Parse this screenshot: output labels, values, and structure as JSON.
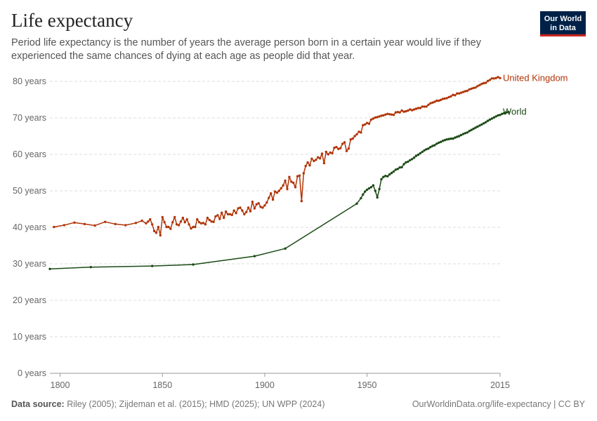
{
  "header": {
    "title": "Life expectancy",
    "subtitle": "Period life expectancy is the number of years the average person born in a certain year would live if they experienced the same chances of dying at each age as people did that year.",
    "logo_line1": "Our World",
    "logo_line2": "in Data"
  },
  "footer": {
    "source_label": "Data source:",
    "source_text": "Riley (2005); Zijdeman et al. (2015); HMD (2025); UN WPP (2024)",
    "url_text": "OurWorldinData.org/life-expectancy | CC BY"
  },
  "colors": {
    "uk": "#b13507",
    "world": "#1a4a14",
    "grid": "#dddddd"
  },
  "chart_data": {
    "type": "line",
    "title": "Life expectancy",
    "xlim": [
      1795,
      2015
    ],
    "ylim": [
      0,
      80
    ],
    "y_ticks": [
      0,
      10,
      20,
      30,
      40,
      50,
      60,
      70,
      80
    ],
    "y_tick_labels": [
      "0 years",
      "10 years",
      "20 years",
      "30 years",
      "40 years",
      "50 years",
      "60 years",
      "70 years",
      "80 years"
    ],
    "x_ticks": [
      1800,
      1850,
      1900,
      1950,
      2015
    ],
    "x_tick_labels": [
      "1800",
      "1850",
      "1900",
      "1950",
      "2015"
    ],
    "grid": "horizontal dashed",
    "series": [
      {
        "name": "United Kingdom",
        "color": "#b13507",
        "points": [
          [
            1797,
            40.1
          ],
          [
            1802,
            40.6
          ],
          [
            1807,
            41.3
          ],
          [
            1812,
            40.9
          ],
          [
            1817,
            40.5
          ],
          [
            1822,
            41.5
          ],
          [
            1827,
            40.9
          ],
          [
            1832,
            40.6
          ],
          [
            1837,
            41.2
          ],
          [
            1840,
            41.8
          ],
          [
            1842,
            41.1
          ],
          [
            1843,
            41.6
          ],
          [
            1844,
            42.2
          ],
          [
            1845,
            40.8
          ],
          [
            1846,
            39.0
          ],
          [
            1847,
            38.5
          ],
          [
            1848,
            40.1
          ],
          [
            1849,
            37.8
          ],
          [
            1850,
            42.8
          ],
          [
            1851,
            41.4
          ],
          [
            1852,
            40.1
          ],
          [
            1853,
            40.1
          ],
          [
            1854,
            39.6
          ],
          [
            1855,
            41.4
          ],
          [
            1856,
            42.8
          ],
          [
            1857,
            40.8
          ],
          [
            1858,
            40.6
          ],
          [
            1859,
            41.6
          ],
          [
            1860,
            42.6
          ],
          [
            1861,
            41.4
          ],
          [
            1862,
            42.2
          ],
          [
            1863,
            40.8
          ],
          [
            1864,
            39.7
          ],
          [
            1865,
            40.1
          ],
          [
            1866,
            40.1
          ],
          [
            1867,
            42.2
          ],
          [
            1868,
            41.4
          ],
          [
            1869,
            41.1
          ],
          [
            1870,
            41.2
          ],
          [
            1871,
            40.8
          ],
          [
            1872,
            42.6
          ],
          [
            1873,
            42.0
          ],
          [
            1874,
            41.6
          ],
          [
            1875,
            41.5
          ],
          [
            1876,
            43.0
          ],
          [
            1877,
            43.3
          ],
          [
            1878,
            42.3
          ],
          [
            1879,
            44.0
          ],
          [
            1880,
            42.6
          ],
          [
            1881,
            44.3
          ],
          [
            1882,
            43.6
          ],
          [
            1883,
            43.6
          ],
          [
            1884,
            43.4
          ],
          [
            1885,
            44.6
          ],
          [
            1886,
            43.9
          ],
          [
            1887,
            45.2
          ],
          [
            1888,
            45.4
          ],
          [
            1889,
            44.6
          ],
          [
            1890,
            43.6
          ],
          [
            1891,
            44.2
          ],
          [
            1892,
            45.4
          ],
          [
            1893,
            44.4
          ],
          [
            1894,
            47.0
          ],
          [
            1895,
            45.2
          ],
          [
            1896,
            46.3
          ],
          [
            1897,
            46.6
          ],
          [
            1898,
            45.6
          ],
          [
            1899,
            45.4
          ],
          [
            1900,
            46.0
          ],
          [
            1901,
            46.8
          ],
          [
            1902,
            48.1
          ],
          [
            1903,
            49.3
          ],
          [
            1904,
            47.6
          ],
          [
            1905,
            49.8
          ],
          [
            1906,
            49.5
          ],
          [
            1907,
            50.0
          ],
          [
            1908,
            50.7
          ],
          [
            1909,
            51.5
          ],
          [
            1910,
            52.8
          ],
          [
            1911,
            50.5
          ],
          [
            1912,
            53.8
          ],
          [
            1913,
            52.5
          ],
          [
            1914,
            52.2
          ],
          [
            1915,
            51.0
          ],
          [
            1916,
            54.0
          ],
          [
            1917,
            54.2
          ],
          [
            1918,
            47.2
          ],
          [
            1919,
            54.8
          ],
          [
            1920,
            56.8
          ],
          [
            1921,
            57.8
          ],
          [
            1922,
            57.0
          ],
          [
            1923,
            58.8
          ],
          [
            1924,
            58.2
          ],
          [
            1925,
            58.5
          ],
          [
            1926,
            59.2
          ],
          [
            1927,
            58.9
          ],
          [
            1928,
            60.2
          ],
          [
            1929,
            57.6
          ],
          [
            1930,
            60.7
          ],
          [
            1931,
            60.0
          ],
          [
            1932,
            60.5
          ],
          [
            1933,
            60.3
          ],
          [
            1934,
            61.8
          ],
          [
            1935,
            62.0
          ],
          [
            1936,
            61.5
          ],
          [
            1937,
            61.7
          ],
          [
            1938,
            62.9
          ],
          [
            1939,
            63.3
          ],
          [
            1940,
            60.9
          ],
          [
            1941,
            61.6
          ],
          [
            1942,
            64.1
          ],
          [
            1943,
            64.3
          ],
          [
            1944,
            65.0
          ],
          [
            1945,
            65.5
          ],
          [
            1946,
            66.2
          ],
          [
            1947,
            66.0
          ],
          [
            1948,
            68.0
          ],
          [
            1949,
            68.2
          ],
          [
            1950,
            68.6
          ],
          [
            1951,
            68.4
          ],
          [
            1952,
            69.5
          ],
          [
            1953,
            69.8
          ],
          [
            1954,
            70.1
          ],
          [
            1955,
            70.2
          ],
          [
            1956,
            70.4
          ],
          [
            1957,
            70.6
          ],
          [
            1958,
            70.7
          ],
          [
            1959,
            70.9
          ],
          [
            1960,
            71.1
          ],
          [
            1961,
            71.0
          ],
          [
            1962,
            70.9
          ],
          [
            1963,
            70.8
          ],
          [
            1964,
            71.5
          ],
          [
            1965,
            71.6
          ],
          [
            1966,
            71.5
          ],
          [
            1967,
            72.0
          ],
          [
            1968,
            71.7
          ],
          [
            1969,
            71.8
          ],
          [
            1970,
            72.0
          ],
          [
            1971,
            72.3
          ],
          [
            1972,
            72.1
          ],
          [
            1973,
            72.3
          ],
          [
            1974,
            72.5
          ],
          [
            1975,
            72.7
          ],
          [
            1976,
            72.7
          ],
          [
            1977,
            73.1
          ],
          [
            1978,
            73.1
          ],
          [
            1979,
            73.1
          ],
          [
            1980,
            73.6
          ],
          [
            1981,
            74.0
          ],
          [
            1982,
            74.2
          ],
          [
            1983,
            74.4
          ],
          [
            1984,
            74.7
          ],
          [
            1985,
            74.7
          ],
          [
            1986,
            74.9
          ],
          [
            1987,
            75.2
          ],
          [
            1988,
            75.3
          ],
          [
            1989,
            75.4
          ],
          [
            1990,
            75.7
          ],
          [
            1991,
            75.9
          ],
          [
            1992,
            76.3
          ],
          [
            1993,
            76.2
          ],
          [
            1994,
            76.7
          ],
          [
            1995,
            76.7
          ],
          [
            1996,
            76.9
          ],
          [
            1997,
            77.1
          ],
          [
            1998,
            77.3
          ],
          [
            1999,
            77.4
          ],
          [
            2000,
            77.8
          ],
          [
            2001,
            78.0
          ],
          [
            2002,
            78.2
          ],
          [
            2003,
            78.3
          ],
          [
            2004,
            78.7
          ],
          [
            2005,
            79.0
          ],
          [
            2006,
            79.3
          ],
          [
            2007,
            79.5
          ],
          [
            2008,
            79.6
          ],
          [
            2009,
            80.1
          ],
          [
            2010,
            80.4
          ],
          [
            2011,
            80.8
          ],
          [
            2012,
            80.8
          ],
          [
            2013,
            80.9
          ],
          [
            2014,
            81.2
          ],
          [
            2015,
            80.9
          ]
        ]
      },
      {
        "name": "World",
        "color": "#1a4a14",
        "points": [
          [
            1795,
            28.6
          ],
          [
            1815,
            29.1
          ],
          [
            1845,
            29.4
          ],
          [
            1865,
            29.8
          ],
          [
            1895,
            32.1
          ],
          [
            1910,
            34.2
          ],
          [
            1945,
            46.5
          ],
          [
            1947,
            48.0
          ],
          [
            1948,
            49.0
          ],
          [
            1949,
            49.8
          ],
          [
            1950,
            50.3
          ],
          [
            1951,
            50.7
          ],
          [
            1952,
            51.0
          ],
          [
            1953,
            51.5
          ],
          [
            1954,
            50.0
          ],
          [
            1955,
            48.2
          ],
          [
            1956,
            50.5
          ],
          [
            1957,
            53.2
          ],
          [
            1958,
            53.8
          ],
          [
            1959,
            54.1
          ],
          [
            1960,
            54.0
          ],
          [
            1961,
            54.5
          ],
          [
            1962,
            54.9
          ],
          [
            1963,
            55.3
          ],
          [
            1964,
            55.8
          ],
          [
            1965,
            56.0
          ],
          [
            1966,
            56.4
          ],
          [
            1967,
            56.5
          ],
          [
            1968,
            57.3
          ],
          [
            1969,
            57.8
          ],
          [
            1970,
            58.0
          ],
          [
            1971,
            58.4
          ],
          [
            1972,
            58.7
          ],
          [
            1973,
            59.1
          ],
          [
            1974,
            59.6
          ],
          [
            1975,
            59.9
          ],
          [
            1976,
            60.3
          ],
          [
            1977,
            60.7
          ],
          [
            1978,
            61.1
          ],
          [
            1979,
            61.4
          ],
          [
            1980,
            61.6
          ],
          [
            1981,
            62.0
          ],
          [
            1982,
            62.3
          ],
          [
            1983,
            62.5
          ],
          [
            1984,
            62.9
          ],
          [
            1985,
            63.2
          ],
          [
            1986,
            63.4
          ],
          [
            1987,
            63.7
          ],
          [
            1988,
            63.9
          ],
          [
            1989,
            64.1
          ],
          [
            1990,
            64.2
          ],
          [
            1991,
            64.3
          ],
          [
            1992,
            64.3
          ],
          [
            1993,
            64.6
          ],
          [
            1994,
            64.8
          ],
          [
            1995,
            65.0
          ],
          [
            1996,
            65.3
          ],
          [
            1997,
            65.6
          ],
          [
            1998,
            65.8
          ],
          [
            1999,
            66.0
          ],
          [
            2000,
            66.4
          ],
          [
            2001,
            66.7
          ],
          [
            2002,
            67.0
          ],
          [
            2003,
            67.3
          ],
          [
            2004,
            67.6
          ],
          [
            2005,
            67.9
          ],
          [
            2006,
            68.2
          ],
          [
            2007,
            68.5
          ],
          [
            2008,
            68.8
          ],
          [
            2009,
            69.2
          ],
          [
            2010,
            69.5
          ],
          [
            2011,
            69.8
          ],
          [
            2012,
            70.1
          ],
          [
            2013,
            70.4
          ],
          [
            2014,
            70.7
          ],
          [
            2015,
            70.8
          ],
          [
            2016,
            71.1
          ],
          [
            2017,
            71.3
          ],
          [
            2018,
            71.5
          ],
          [
            2019,
            71.6
          ]
        ]
      }
    ]
  }
}
